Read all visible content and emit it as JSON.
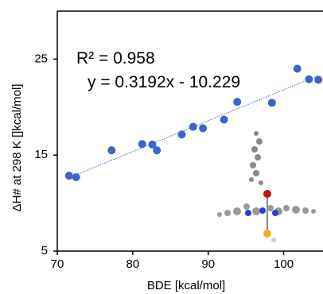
{
  "chart_data": {
    "type": "scatter",
    "x_label": "BDE [kcal/mol]",
    "y_label": "ΔH# at 298 K []kcal/mol]",
    "annotations": [
      "R² = 0.958",
      "y = 0.3192x - 10.229"
    ],
    "series": [
      {
        "color": "#3a66c9",
        "x": [
          71.56,
          72.5,
          77.2,
          81.25,
          82.6,
          83.2,
          86.5,
          88.0,
          89.3,
          92.1,
          93.85,
          98.45,
          101.8,
          103.35,
          104.6
        ],
        "values": [
          12.85,
          12.7,
          15.5,
          16.15,
          16.1,
          15.5,
          17.15,
          17.95,
          17.8,
          18.7,
          20.55,
          20.45,
          24.0,
          22.9,
          22.85
        ]
      }
    ],
    "trendline": true,
    "xlim": [
      70,
      105
    ],
    "xticks": [
      70,
      80,
      90,
      100
    ],
    "ylim": [
      5,
      30
    ],
    "yticks": [
      5,
      15,
      25
    ]
  }
}
